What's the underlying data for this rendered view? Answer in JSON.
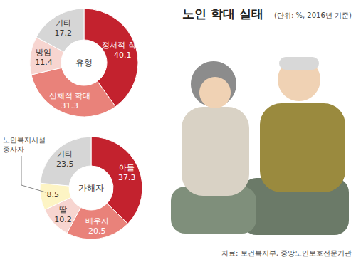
{
  "title": "노인 학대 실태",
  "subtitle": "(단위: %, 2016년 기준)",
  "source": "자료: 보건복지부, 중앙노인보호전문기관",
  "chart_data": [
    {
      "type": "pie",
      "title": "유형",
      "categories": [
        "정서적 학대",
        "신체적 학대",
        "방임",
        "기타"
      ],
      "values": [
        40.1,
        31.3,
        11.4,
        17.2
      ],
      "colors": [
        "#c3222e",
        "#e9827a",
        "#f7d5d0",
        "#d6d6d6"
      ],
      "data_labels": true
    },
    {
      "type": "pie",
      "title": "가해자",
      "categories": [
        "아들",
        "배우자",
        "딸",
        "노인복지시설 종사자",
        "기타"
      ],
      "values": [
        37.3,
        20.5,
        10.2,
        8.5,
        23.5
      ],
      "colors": [
        "#c3222e",
        "#e9827a",
        "#f7d5d0",
        "#fdf4c4",
        "#d6d6d6"
      ],
      "data_labels": true
    }
  ]
}
